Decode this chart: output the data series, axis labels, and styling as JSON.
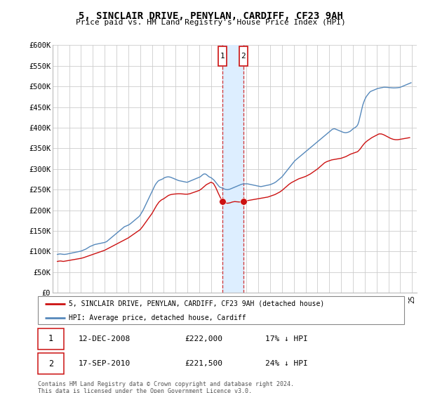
{
  "title": "5, SINCLAIR DRIVE, PENYLAN, CARDIFF, CF23 9AH",
  "subtitle": "Price paid vs. HM Land Registry's House Price Index (HPI)",
  "ylim": [
    0,
    600000
  ],
  "yticks": [
    0,
    50000,
    100000,
    150000,
    200000,
    250000,
    300000,
    350000,
    400000,
    450000,
    500000,
    550000,
    600000
  ],
  "ytick_labels": [
    "£0",
    "£50K",
    "£100K",
    "£150K",
    "£200K",
    "£250K",
    "£300K",
    "£350K",
    "£400K",
    "£450K",
    "£500K",
    "£550K",
    "£600K"
  ],
  "xlim_min": 1994.6,
  "xlim_max": 2025.4,
  "hpi_color": "#5588bb",
  "price_color": "#cc1111",
  "shade_color": "#ddeeff",
  "transactions": [
    {
      "label": "1",
      "year": 2008.95,
      "price": 222000,
      "date": "12-DEC-2008",
      "pct": "17%",
      "dir": "↓"
    },
    {
      "label": "2",
      "year": 2010.72,
      "price": 221500,
      "date": "17-SEP-2010",
      "pct": "24%",
      "dir": "↓"
    }
  ],
  "legend_entry1": "5, SINCLAIR DRIVE, PENYLAN, CARDIFF, CF23 9AH (detached house)",
  "legend_entry2": "HPI: Average price, detached house, Cardiff",
  "footer1": "Contains HM Land Registry data © Crown copyright and database right 2024.",
  "footer2": "This data is licensed under the Open Government Licence v3.0.",
  "hpi_data_years": [
    1995.0,
    1995.083,
    1995.167,
    1995.25,
    1995.333,
    1995.417,
    1995.5,
    1995.583,
    1995.667,
    1995.75,
    1995.833,
    1995.917,
    1996.0,
    1996.083,
    1996.167,
    1996.25,
    1996.333,
    1996.417,
    1996.5,
    1996.583,
    1996.667,
    1996.75,
    1996.833,
    1996.917,
    1997.0,
    1997.083,
    1997.167,
    1997.25,
    1997.333,
    1997.417,
    1997.5,
    1997.583,
    1997.667,
    1997.75,
    1997.833,
    1997.917,
    1998.0,
    1998.083,
    1998.167,
    1998.25,
    1998.333,
    1998.417,
    1998.5,
    1998.583,
    1998.667,
    1998.75,
    1998.833,
    1998.917,
    1999.0,
    1999.083,
    1999.167,
    1999.25,
    1999.333,
    1999.417,
    1999.5,
    1999.583,
    1999.667,
    1999.75,
    1999.833,
    1999.917,
    2000.0,
    2000.083,
    2000.167,
    2000.25,
    2000.333,
    2000.417,
    2000.5,
    2000.583,
    2000.667,
    2000.75,
    2000.833,
    2000.917,
    2001.0,
    2001.083,
    2001.167,
    2001.25,
    2001.333,
    2001.417,
    2001.5,
    2001.583,
    2001.667,
    2001.75,
    2001.833,
    2001.917,
    2002.0,
    2002.083,
    2002.167,
    2002.25,
    2002.333,
    2002.417,
    2002.5,
    2002.583,
    2002.667,
    2002.75,
    2002.833,
    2002.917,
    2003.0,
    2003.083,
    2003.167,
    2003.25,
    2003.333,
    2003.417,
    2003.5,
    2003.583,
    2003.667,
    2003.75,
    2003.833,
    2003.917,
    2004.0,
    2004.083,
    2004.167,
    2004.25,
    2004.333,
    2004.417,
    2004.5,
    2004.583,
    2004.667,
    2004.75,
    2004.833,
    2004.917,
    2005.0,
    2005.083,
    2005.167,
    2005.25,
    2005.333,
    2005.417,
    2005.5,
    2005.583,
    2005.667,
    2005.75,
    2005.833,
    2005.917,
    2006.0,
    2006.083,
    2006.167,
    2006.25,
    2006.333,
    2006.417,
    2006.5,
    2006.583,
    2006.667,
    2006.75,
    2006.833,
    2006.917,
    2007.0,
    2007.083,
    2007.167,
    2007.25,
    2007.333,
    2007.417,
    2007.5,
    2007.583,
    2007.667,
    2007.75,
    2007.833,
    2007.917,
    2008.0,
    2008.083,
    2008.167,
    2008.25,
    2008.333,
    2008.417,
    2008.5,
    2008.583,
    2008.667,
    2008.75,
    2008.833,
    2008.917,
    2009.0,
    2009.083,
    2009.167,
    2009.25,
    2009.333,
    2009.417,
    2009.5,
    2009.583,
    2009.667,
    2009.75,
    2009.833,
    2009.917,
    2010.0,
    2010.083,
    2010.167,
    2010.25,
    2010.333,
    2010.417,
    2010.5,
    2010.583,
    2010.667,
    2010.75,
    2010.833,
    2010.917,
    2011.0,
    2011.083,
    2011.167,
    2011.25,
    2011.333,
    2011.417,
    2011.5,
    2011.583,
    2011.667,
    2011.75,
    2011.833,
    2011.917,
    2012.0,
    2012.083,
    2012.167,
    2012.25,
    2012.333,
    2012.417,
    2012.5,
    2012.583,
    2012.667,
    2012.75,
    2012.833,
    2012.917,
    2013.0,
    2013.083,
    2013.167,
    2013.25,
    2013.333,
    2013.417,
    2013.5,
    2013.583,
    2013.667,
    2013.75,
    2013.833,
    2013.917,
    2014.0,
    2014.083,
    2014.167,
    2014.25,
    2014.333,
    2014.417,
    2014.5,
    2014.583,
    2014.667,
    2014.75,
    2014.833,
    2014.917,
    2015.0,
    2015.083,
    2015.167,
    2015.25,
    2015.333,
    2015.417,
    2015.5,
    2015.583,
    2015.667,
    2015.75,
    2015.833,
    2015.917,
    2016.0,
    2016.083,
    2016.167,
    2016.25,
    2016.333,
    2016.417,
    2016.5,
    2016.583,
    2016.667,
    2016.75,
    2016.833,
    2016.917,
    2017.0,
    2017.083,
    2017.167,
    2017.25,
    2017.333,
    2017.417,
    2017.5,
    2017.583,
    2017.667,
    2017.75,
    2017.833,
    2017.917,
    2018.0,
    2018.083,
    2018.167,
    2018.25,
    2018.333,
    2018.417,
    2018.5,
    2018.583,
    2018.667,
    2018.75,
    2018.833,
    2018.917,
    2019.0,
    2019.083,
    2019.167,
    2019.25,
    2019.333,
    2019.417,
    2019.5,
    2019.583,
    2019.667,
    2019.75,
    2019.833,
    2019.917,
    2020.0,
    2020.083,
    2020.167,
    2020.25,
    2020.333,
    2020.417,
    2020.5,
    2020.583,
    2020.667,
    2020.75,
    2020.833,
    2020.917,
    2021.0,
    2021.083,
    2021.167,
    2021.25,
    2021.333,
    2021.417,
    2021.5,
    2021.583,
    2021.667,
    2021.75,
    2021.833,
    2021.917,
    2022.0,
    2022.083,
    2022.167,
    2022.25,
    2022.333,
    2022.417,
    2022.5,
    2022.583,
    2022.667,
    2022.75,
    2022.833,
    2022.917,
    2023.0,
    2023.083,
    2023.167,
    2023.25,
    2023.333,
    2023.417,
    2023.5,
    2023.583,
    2023.667,
    2023.75,
    2023.833,
    2023.917,
    2024.0,
    2024.083,
    2024.167,
    2024.25,
    2024.333,
    2024.417,
    2024.5,
    2024.583,
    2024.667,
    2024.75,
    2024.833,
    2024.917
  ],
  "hpi_data_values": [
    93000,
    93500,
    94000,
    94200,
    93800,
    93500,
    93200,
    93000,
    93200,
    93500,
    94000,
    94500,
    95000,
    95500,
    96000,
    96500,
    97000,
    97500,
    98000,
    98500,
    99000,
    99500,
    100000,
    100500,
    101000,
    102000,
    103000,
    104000,
    105000,
    106000,
    107500,
    109000,
    110500,
    112000,
    113000,
    114000,
    115000,
    116000,
    117000,
    117500,
    118000,
    118500,
    119000,
    119500,
    120000,
    120500,
    121000,
    121500,
    122000,
    123000,
    124000,
    126000,
    128000,
    130000,
    132000,
    134000,
    136000,
    138000,
    140000,
    142000,
    144000,
    146000,
    148000,
    150000,
    152000,
    154000,
    156000,
    158000,
    160000,
    161000,
    162000,
    163000,
    164000,
    165500,
    167000,
    169000,
    171000,
    173000,
    175000,
    177000,
    179000,
    181000,
    183000,
    185000,
    188000,
    192000,
    196000,
    200000,
    205000,
    210000,
    215000,
    220000,
    225000,
    230000,
    235000,
    240000,
    245000,
    250000,
    255000,
    260000,
    264000,
    267000,
    270000,
    272000,
    273000,
    274000,
    275000,
    276000,
    278000,
    279000,
    280000,
    280500,
    281000,
    281000,
    280500,
    280000,
    279000,
    278000,
    277000,
    276000,
    275000,
    274000,
    273000,
    272000,
    271500,
    271000,
    270500,
    270000,
    269500,
    269000,
    268500,
    268000,
    268000,
    269000,
    270000,
    271000,
    272000,
    273000,
    274000,
    275000,
    276000,
    277000,
    278000,
    279000,
    280000,
    281000,
    283000,
    285000,
    287000,
    288000,
    288000,
    287000,
    285000,
    283000,
    281000,
    280000,
    279000,
    277000,
    275000,
    273000,
    270000,
    267000,
    264000,
    261000,
    258000,
    256000,
    255000,
    254000,
    253000,
    252000,
    251000,
    250500,
    250000,
    250000,
    250500,
    251000,
    252000,
    253000,
    254000,
    255000,
    256000,
    257000,
    258000,
    259000,
    260000,
    261000,
    262000,
    263000,
    263500,
    264000,
    264000,
    264000,
    264000,
    264000,
    263500,
    263000,
    262500,
    262000,
    261500,
    261000,
    260500,
    260000,
    259500,
    259000,
    258500,
    258000,
    257500,
    257500,
    258000,
    258500,
    259000,
    259500,
    260000,
    260500,
    261000,
    261500,
    262000,
    263000,
    264000,
    265000,
    266000,
    267500,
    269000,
    271000,
    273000,
    275000,
    277000,
    279000,
    281000,
    284000,
    287000,
    290000,
    293000,
    296000,
    299000,
    302000,
    305000,
    308000,
    311000,
    314000,
    317000,
    320000,
    322000,
    324000,
    326000,
    328000,
    330000,
    332000,
    334000,
    336000,
    338000,
    340000,
    342000,
    344000,
    346000,
    348000,
    350000,
    352000,
    354000,
    356000,
    358000,
    360000,
    362000,
    364000,
    366000,
    368000,
    370000,
    372000,
    374000,
    376000,
    378000,
    380000,
    382000,
    384000,
    386000,
    388000,
    390000,
    392000,
    394000,
    396000,
    397000,
    397500,
    397000,
    396000,
    395000,
    394000,
    393000,
    392000,
    391000,
    390000,
    389000,
    388500,
    388000,
    388000,
    388500,
    389000,
    390000,
    391000,
    393000,
    395000,
    397000,
    399000,
    400000,
    402000,
    404000,
    408000,
    415000,
    425000,
    435000,
    445000,
    455000,
    462000,
    468000,
    473000,
    477000,
    480000,
    483000,
    486000,
    488000,
    489000,
    490000,
    491000,
    492000,
    493000,
    494000,
    495000,
    495500,
    496000,
    496500,
    497000,
    497500,
    498000,
    498200,
    498100,
    498000,
    497800,
    497500,
    497200,
    497000,
    496800,
    496600,
    496500,
    496500,
    496600,
    496700,
    496900,
    497200,
    497500,
    498000,
    499000,
    500000,
    501000,
    502000,
    503000,
    504000,
    505000,
    506000,
    507000,
    508000,
    509000
  ],
  "price_data_years": [
    1995.0,
    1995.1,
    1995.2,
    1995.3,
    1995.4,
    1995.5,
    1995.6,
    1995.7,
    1995.8,
    1995.9,
    1996.0,
    1996.1,
    1996.2,
    1996.4,
    1996.6,
    1996.8,
    1997.0,
    1997.2,
    1997.4,
    1997.6,
    1997.8,
    1998.0,
    1998.2,
    1998.4,
    1998.6,
    1998.8,
    1999.0,
    1999.2,
    1999.4,
    1999.6,
    1999.8,
    2000.0,
    2000.2,
    2000.4,
    2000.6,
    2000.8,
    2001.0,
    2001.2,
    2001.4,
    2001.6,
    2001.8,
    2002.0,
    2002.2,
    2002.4,
    2002.6,
    2002.8,
    2003.0,
    2003.2,
    2003.4,
    2003.6,
    2003.8,
    2004.0,
    2004.2,
    2004.4,
    2004.6,
    2004.8,
    2005.0,
    2005.2,
    2005.4,
    2005.6,
    2005.8,
    2006.0,
    2006.2,
    2006.4,
    2006.6,
    2006.8,
    2007.0,
    2007.2,
    2007.4,
    2007.6,
    2007.8,
    2008.0,
    2008.2,
    2008.4,
    2008.6,
    2008.8,
    2008.95,
    2009.0,
    2009.2,
    2009.4,
    2009.6,
    2009.8,
    2010.0,
    2010.2,
    2010.4,
    2010.6,
    2010.72,
    2010.8,
    2011.0,
    2011.2,
    2011.4,
    2011.6,
    2011.8,
    2012.0,
    2012.2,
    2012.4,
    2012.6,
    2012.8,
    2013.0,
    2013.2,
    2013.4,
    2013.6,
    2013.8,
    2014.0,
    2014.2,
    2014.4,
    2014.6,
    2014.8,
    2015.0,
    2015.2,
    2015.4,
    2015.6,
    2015.8,
    2016.0,
    2016.2,
    2016.4,
    2016.6,
    2016.8,
    2017.0,
    2017.2,
    2017.4,
    2017.6,
    2017.8,
    2018.0,
    2018.2,
    2018.4,
    2018.6,
    2018.8,
    2019.0,
    2019.2,
    2019.4,
    2019.6,
    2019.8,
    2020.0,
    2020.2,
    2020.4,
    2020.6,
    2020.8,
    2021.0,
    2021.2,
    2021.4,
    2021.6,
    2021.8,
    2022.0,
    2022.2,
    2022.4,
    2022.6,
    2022.8,
    2023.0,
    2023.2,
    2023.4,
    2023.6,
    2023.8,
    2024.0,
    2024.2,
    2024.4,
    2024.6,
    2024.8
  ],
  "price_data_values": [
    76000,
    76500,
    77000,
    77000,
    76500,
    76000,
    76500,
    77000,
    77500,
    78000,
    78500,
    79000,
    79500,
    80500,
    81500,
    82500,
    83500,
    85000,
    87000,
    89000,
    91000,
    93000,
    95000,
    97000,
    99000,
    101000,
    103000,
    106000,
    109000,
    112000,
    115000,
    118000,
    121000,
    124000,
    127000,
    130000,
    133000,
    137000,
    141000,
    145000,
    149000,
    153000,
    160000,
    168000,
    176000,
    184000,
    192000,
    202000,
    212000,
    220000,
    225000,
    228000,
    232000,
    236000,
    238000,
    239000,
    239500,
    240000,
    240000,
    239500,
    239000,
    239000,
    240000,
    242000,
    244000,
    246000,
    248000,
    252000,
    257000,
    262000,
    265000,
    268000,
    265000,
    255000,
    242000,
    230000,
    222000,
    220000,
    218000,
    217000,
    218000,
    220000,
    221000,
    220500,
    220000,
    220500,
    221500,
    222000,
    223000,
    224000,
    225000,
    226000,
    227000,
    228000,
    229000,
    230000,
    231000,
    232000,
    234000,
    236000,
    238000,
    241000,
    244000,
    248000,
    253000,
    258000,
    263000,
    267000,
    270000,
    273000,
    276000,
    278000,
    280000,
    282000,
    285000,
    288000,
    292000,
    296000,
    300000,
    305000,
    310000,
    315000,
    318000,
    320000,
    322000,
    323000,
    324000,
    325000,
    326000,
    328000,
    330000,
    333000,
    336000,
    338000,
    340000,
    342000,
    348000,
    356000,
    363000,
    368000,
    372000,
    376000,
    379000,
    382000,
    385000,
    385000,
    383000,
    380000,
    377000,
    374000,
    372000,
    371000,
    371000,
    372000,
    373000,
    374000,
    375000,
    376000
  ]
}
